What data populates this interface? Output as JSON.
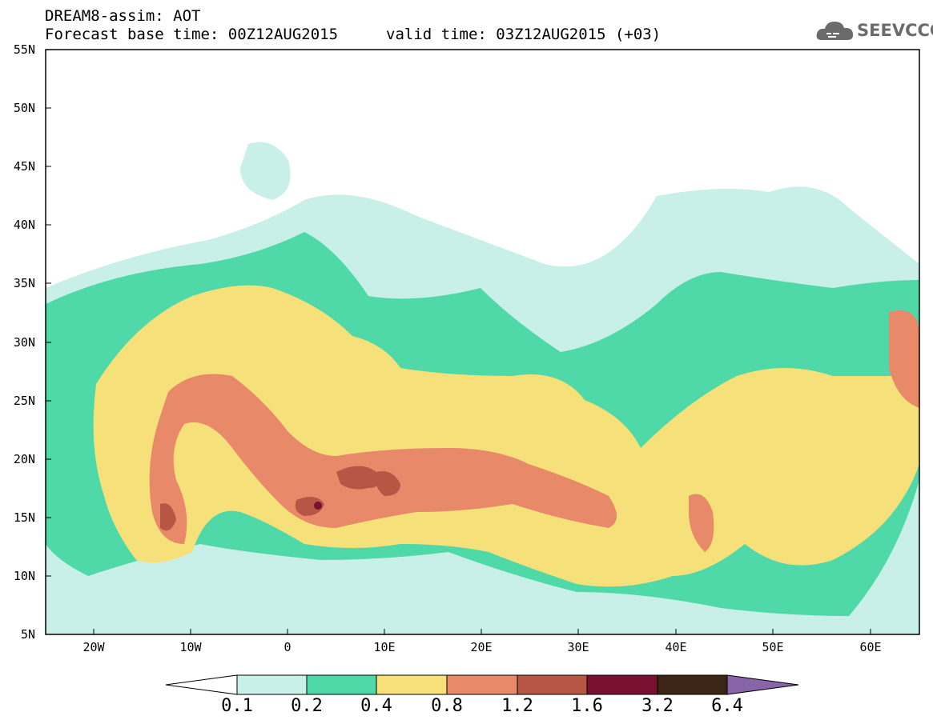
{
  "header": {
    "title": "DREAM8-assim: AOT",
    "base_time": "Forecast base time: 00Z12AUG2015",
    "valid_time": "valid time: 03Z12AUG2015 (+03)",
    "logo_text": "SEEVCCC"
  },
  "axes": {
    "lat_labels": [
      "55N",
      "50N",
      "45N",
      "40N",
      "35N",
      "30N",
      "25N",
      "20N",
      "15N",
      "10N",
      "5N"
    ],
    "lon_labels": [
      "20W",
      "10W",
      "0",
      "10E",
      "20E",
      "30E",
      "40E",
      "50E",
      "60E"
    ]
  },
  "colorbar": {
    "labels": [
      "0.1",
      "0.2",
      "0.4",
      "0.8",
      "1.2",
      "1.6",
      "3.2",
      "6.4"
    ],
    "colors": [
      "#c8f0e8",
      "#4fd9a8",
      "#f5e07a",
      "#e8896a",
      "#b85645",
      "#7a1030",
      "#3d2516",
      "#8a64a8"
    ]
  },
  "map_colors": {
    "c1": "#c8f0e8",
    "c2": "#4fd9a8",
    "c3": "#f5e07a",
    "c4": "#e8896a",
    "c5": "#b85645",
    "c6": "#7a1030"
  }
}
